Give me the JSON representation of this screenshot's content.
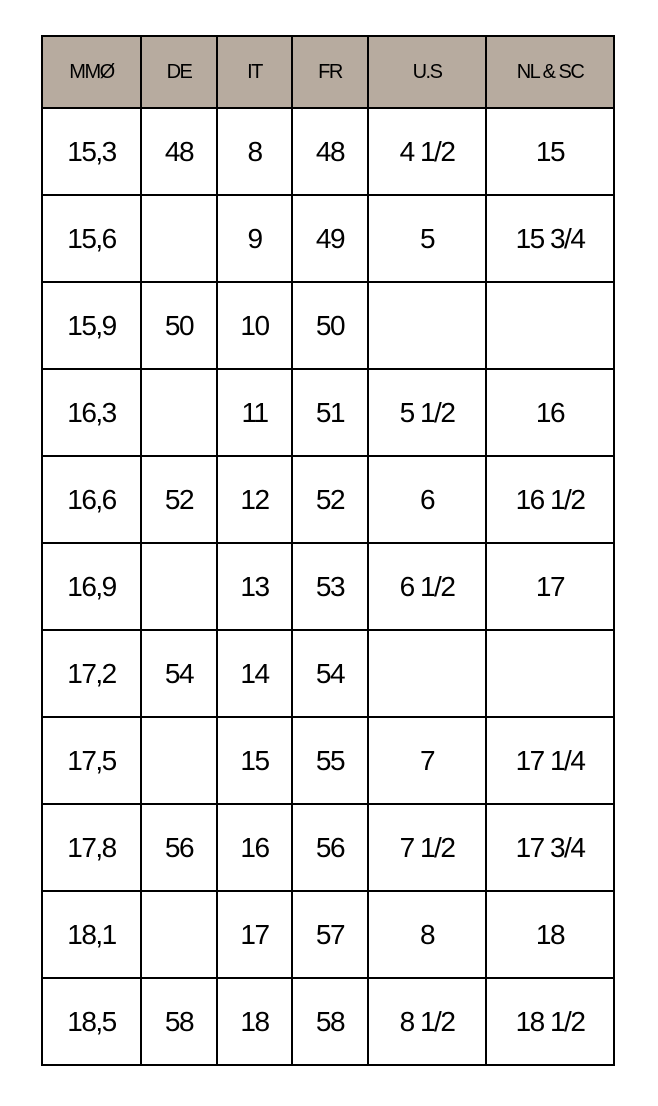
{
  "colors": {
    "header_bg": "#b7ab9f",
    "border": "#000000"
  },
  "headers": [
    "MMØ",
    "DE",
    "IT",
    "FR",
    "U.S",
    "NL & SC"
  ],
  "rows": [
    [
      "15,3",
      "48",
      "8",
      "48",
      "4 1/2",
      "15"
    ],
    [
      "15,6",
      "",
      "9",
      "49",
      "5",
      "15 3/4"
    ],
    [
      "15,9",
      "50",
      "10",
      "50",
      "",
      ""
    ],
    [
      "16,3",
      "",
      "11",
      "51",
      "5 1/2",
      "16"
    ],
    [
      "16,6",
      "52",
      "12",
      "52",
      "6",
      "16 1/2"
    ],
    [
      "16,9",
      "",
      "13",
      "53",
      "6 1/2",
      "17"
    ],
    [
      "17,2",
      "54",
      "14",
      "54",
      "",
      ""
    ],
    [
      "17,5",
      "",
      "15",
      "55",
      "7",
      "17 1/4"
    ],
    [
      "17,8",
      "56",
      "16",
      "56",
      "7 1/2",
      "17 3/4"
    ],
    [
      "18,1",
      "",
      "17",
      "57",
      "8",
      "18"
    ],
    [
      "18,5",
      "58",
      "18",
      "58",
      "8 1/2",
      "18 1/2"
    ]
  ]
}
